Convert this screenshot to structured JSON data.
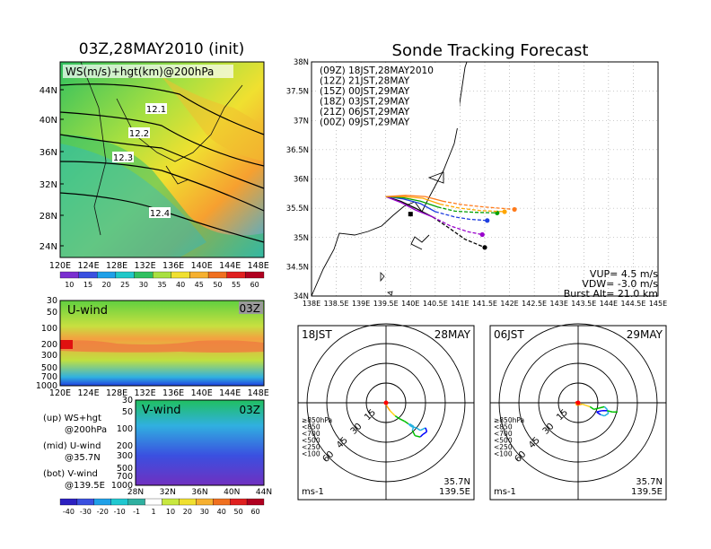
{
  "left_title": "03Z,28MAY2010 (init)",
  "right_title": "Sonde Tracking Forecast",
  "map_panel": {
    "label": "WS(m/s)+hgt(km)@200hPa",
    "lat_labels": [
      "44N",
      "40N",
      "36N",
      "32N",
      "28N",
      "24N"
    ],
    "lon_labels": [
      "120E",
      "124E",
      "128E",
      "132E",
      "136E",
      "140E",
      "144E",
      "148E"
    ],
    "contour_labels": [
      "12.1",
      "12.2",
      "12.3",
      "12.4"
    ],
    "colorbar_labels": [
      "10",
      "15",
      "20",
      "25",
      "30",
      "35",
      "40",
      "45",
      "50",
      "55",
      "60"
    ]
  },
  "u_panel": {
    "label": "U-wind",
    "time": "03Z",
    "p_labels": [
      "30",
      "50",
      "100",
      "200",
      "300",
      "500",
      "700",
      "1000"
    ],
    "lon_labels": [
      "120E",
      "124E",
      "128E",
      "132E",
      "136E",
      "140E",
      "144E",
      "148E"
    ]
  },
  "v_panel": {
    "label": "V-wind",
    "time": "03Z",
    "p_labels": [
      "30",
      "50",
      "100",
      "200",
      "300",
      "500",
      "700",
      "1000"
    ],
    "lat_labels": [
      "28N",
      "32N",
      "36N",
      "40N",
      "44N"
    ]
  },
  "panel_notes": [
    {
      "line1": "(up) WS+hgt",
      "line2": "@200hPa"
    },
    {
      "line1": "(mid) U-wind",
      "line2": "@35.7N"
    },
    {
      "line1": "(bot) V-wind",
      "line2": "@139.5E"
    }
  ],
  "bottom_colorbar_labels": [
    "-40",
    "-30",
    "-20",
    "-10",
    "-1",
    "1",
    "10",
    "20",
    "30",
    "40",
    "50",
    "60"
  ],
  "chart_data": {
    "type": "line",
    "title": "Sonde Tracking Forecast",
    "xlim": [
      138,
      145
    ],
    "ylim": [
      34,
      38
    ],
    "x_ticks": [
      "138E",
      "138.5E",
      "139E",
      "139.5E",
      "140E",
      "140.5E",
      "141E",
      "141.5E",
      "142E",
      "142.5E",
      "143E",
      "143.5E",
      "144E",
      "144.5E",
      "145E"
    ],
    "y_ticks": [
      "34N",
      "34.5N",
      "35N",
      "35.5N",
      "36N",
      "36.5N",
      "37N",
      "37.5N",
      "38N"
    ],
    "series": [
      {
        "name": "(09Z) 18JST,28MAY2010",
        "color": "#000000",
        "points": [
          [
            139.5,
            35.7
          ],
          [
            139.8,
            35.62
          ],
          [
            140.1,
            35.5
          ],
          [
            140.45,
            35.35
          ],
          [
            140.8,
            35.15
          ],
          [
            141.1,
            34.97
          ],
          [
            141.5,
            34.83
          ]
        ]
      },
      {
        "name": "(12Z) 21JST,28MAY",
        "color": "#9900cc",
        "points": [
          [
            139.5,
            35.7
          ],
          [
            139.8,
            35.6
          ],
          [
            140.1,
            35.47
          ],
          [
            140.45,
            35.35
          ],
          [
            140.8,
            35.2
          ],
          [
            141.15,
            35.1
          ],
          [
            141.45,
            35.05
          ]
        ]
      },
      {
        "name": "(15Z) 00JST,29MAY",
        "color": "#1f3fe0",
        "points": [
          [
            139.5,
            35.7
          ],
          [
            139.85,
            35.66
          ],
          [
            140.2,
            35.58
          ],
          [
            140.5,
            35.44
          ],
          [
            140.9,
            35.35
          ],
          [
            141.2,
            35.31
          ],
          [
            141.55,
            35.29
          ]
        ]
      },
      {
        "name": "(18Z) 03JST,29MAY",
        "color": "#00a000",
        "points": [
          [
            139.5,
            35.7
          ],
          [
            139.85,
            35.68
          ],
          [
            140.2,
            35.62
          ],
          [
            140.55,
            35.52
          ],
          [
            140.9,
            35.45
          ],
          [
            141.3,
            35.43
          ],
          [
            141.75,
            35.42
          ]
        ]
      },
      {
        "name": "(21Z) 06JST,29MAY",
        "color": "#ffa600",
        "points": [
          [
            139.5,
            35.7
          ],
          [
            139.85,
            35.7
          ],
          [
            140.25,
            35.67
          ],
          [
            140.6,
            35.57
          ],
          [
            141.0,
            35.5
          ],
          [
            141.4,
            35.46
          ],
          [
            141.9,
            35.44
          ]
        ]
      },
      {
        "name": "(00Z) 09JST,29MAY",
        "color": "#ff7a1a",
        "points": [
          [
            139.5,
            35.7
          ],
          [
            139.9,
            35.72
          ],
          [
            140.3,
            35.7
          ],
          [
            140.65,
            35.62
          ],
          [
            141.05,
            35.56
          ],
          [
            141.5,
            35.52
          ],
          [
            142.1,
            35.48
          ]
        ]
      }
    ],
    "launch_site": [
      140.0,
      35.4
    ],
    "stats": [
      "VUP= 4.5 m/s",
      "VDW= -3.0 m/s",
      "Burst Alt= 21.0 km"
    ]
  },
  "hodographs": [
    {
      "left": "18JST",
      "right": "28MAY",
      "ring_labels": [
        "15",
        "30",
        "45",
        "60"
      ],
      "unit": "ms-1",
      "location": [
        "35.7N",
        "139.5E"
      ],
      "legend": [
        {
          "text": "≥850hPa",
          "color": "#ff0000"
        },
        {
          "text": "<850",
          "color": "#ffa600"
        },
        {
          "text": "<700",
          "color": "#ffd21a"
        },
        {
          "text": "<500",
          "color": "#00c000"
        },
        {
          "text": "<250",
          "color": "#1fb0e0"
        },
        {
          "text": "<100",
          "color": "#0000ff"
        }
      ]
    },
    {
      "left": "06JST",
      "right": "29MAY",
      "ring_labels": [
        "15",
        "30",
        "45",
        "60"
      ],
      "unit": "ms-1",
      "location": [
        "35.7N",
        "139.5E"
      ],
      "legend": [
        {
          "text": "≥850hPa",
          "color": "#ff0000"
        },
        {
          "text": "<850",
          "color": "#ffa600"
        },
        {
          "text": "<700",
          "color": "#ffd21a"
        },
        {
          "text": "<500",
          "color": "#00c000"
        },
        {
          "text": "<250",
          "color": "#1fb0e0"
        },
        {
          "text": "<100",
          "color": "#0000ff"
        }
      ]
    }
  ]
}
